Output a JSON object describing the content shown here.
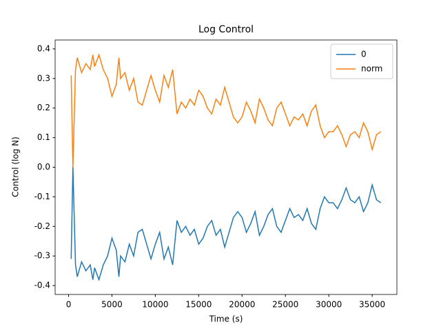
{
  "chart_data": {
    "type": "line",
    "title": "Log Control",
    "x_label": "Time (s)",
    "y_label": "Control (log N)",
    "x": [
      300,
      500,
      800,
      1000,
      1500,
      2000,
      2500,
      2800,
      3000,
      3500,
      4000,
      4500,
      5000,
      5500,
      5800,
      6000,
      6500,
      7000,
      7500,
      8000,
      8500,
      9000,
      9500,
      10000,
      10500,
      11000,
      11500,
      12000,
      12500,
      13000,
      13500,
      14000,
      14500,
      15000,
      15500,
      16000,
      16500,
      17000,
      17500,
      18000,
      18500,
      19000,
      19500,
      20000,
      20500,
      21000,
      21500,
      22000,
      22500,
      23000,
      23500,
      24000,
      24500,
      25000,
      25500,
      26000,
      26500,
      27000,
      27500,
      28000,
      28500,
      29000,
      29500,
      30000,
      30500,
      31000,
      31500,
      32000,
      32500,
      33000,
      33500,
      34000,
      34500,
      35000,
      35500,
      36000
    ],
    "series": [
      {
        "name": "0",
        "color": "#1f77b4",
        "values": [
          -0.31,
          0,
          -0.33,
          -0.37,
          -0.32,
          -0.35,
          -0.33,
          -0.38,
          -0.34,
          -0.38,
          -0.33,
          -0.3,
          -0.24,
          -0.28,
          -0.37,
          -0.3,
          -0.32,
          -0.26,
          -0.3,
          -0.22,
          -0.21,
          -0.26,
          -0.31,
          -0.26,
          -0.22,
          -0.31,
          -0.27,
          -0.33,
          -0.18,
          -0.22,
          -0.2,
          -0.23,
          -0.21,
          -0.26,
          -0.24,
          -0.2,
          -0.18,
          -0.23,
          -0.21,
          -0.27,
          -0.22,
          -0.17,
          -0.15,
          -0.17,
          -0.22,
          -0.19,
          -0.15,
          -0.23,
          -0.2,
          -0.16,
          -0.14,
          -0.2,
          -0.22,
          -0.18,
          -0.14,
          -0.17,
          -0.16,
          -0.18,
          -0.14,
          -0.19,
          -0.21,
          -0.14,
          -0.1,
          -0.12,
          -0.12,
          -0.14,
          -0.11,
          -0.07,
          -0.11,
          -0.12,
          -0.1,
          -0.15,
          -0.12,
          -0.06,
          -0.11,
          -0.12
        ]
      },
      {
        "name": "norm",
        "color": "#ff7f0e",
        "values": [
          0.31,
          0,
          0.33,
          0.37,
          0.32,
          0.35,
          0.33,
          0.38,
          0.34,
          0.38,
          0.33,
          0.3,
          0.24,
          0.28,
          0.37,
          0.3,
          0.32,
          0.26,
          0.3,
          0.22,
          0.21,
          0.26,
          0.31,
          0.26,
          0.22,
          0.31,
          0.27,
          0.33,
          0.18,
          0.22,
          0.2,
          0.23,
          0.21,
          0.26,
          0.24,
          0.2,
          0.18,
          0.23,
          0.21,
          0.27,
          0.22,
          0.17,
          0.15,
          0.17,
          0.22,
          0.19,
          0.15,
          0.23,
          0.2,
          0.16,
          0.14,
          0.2,
          0.22,
          0.18,
          0.14,
          0.17,
          0.16,
          0.18,
          0.14,
          0.19,
          0.21,
          0.14,
          0.1,
          0.12,
          0.12,
          0.14,
          0.11,
          0.07,
          0.11,
          0.12,
          0.1,
          0.15,
          0.12,
          0.06,
          0.11,
          0.12
        ]
      }
    ],
    "xlim": [
      -1550,
      37850
    ],
    "ylim": [
      -0.43,
      0.43
    ],
    "xticks": [
      0,
      5000,
      10000,
      15000,
      20000,
      25000,
      30000,
      35000
    ],
    "yticks": [
      -0.4,
      -0.3,
      -0.2,
      -0.1,
      {
        "value": 0,
        "label": "0.0"
      },
      0.1,
      0.2,
      0.3,
      0.4
    ],
    "legend": "upper right",
    "grid": false
  }
}
